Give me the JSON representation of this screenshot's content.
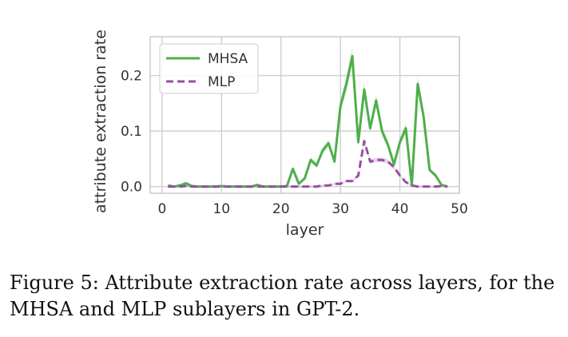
{
  "chart_data": {
    "type": "line",
    "xlabel": "layer",
    "ylabel": "attribute extraction rate",
    "xlim": [
      -2,
      50
    ],
    "ylim": [
      -0.012,
      0.27
    ],
    "xticks": [
      0,
      10,
      20,
      30,
      40,
      50
    ],
    "yticks": [
      0.0,
      0.1,
      0.2
    ],
    "ytick_labels": [
      "0.0",
      "0.1",
      "0.2"
    ],
    "grid": true,
    "legend_position": "top-left",
    "series": [
      {
        "name": "MHSA",
        "color": "#4daf4a",
        "style": "solid",
        "x": [
          1,
          2,
          3,
          4,
          5,
          6,
          7,
          8,
          9,
          10,
          11,
          12,
          13,
          14,
          15,
          16,
          17,
          18,
          19,
          20,
          21,
          22,
          23,
          24,
          25,
          26,
          27,
          28,
          29,
          30,
          31,
          32,
          33,
          34,
          35,
          36,
          37,
          38,
          39,
          40,
          41,
          42,
          43,
          44,
          45,
          46,
          47,
          48
        ],
        "y": [
          0.002,
          0.0,
          0.002,
          0.006,
          0.001,
          0.0,
          0.0,
          0.0,
          0.0,
          0.001,
          0.0,
          0.0,
          0.0,
          0.0,
          0.0,
          0.003,
          0.0,
          0.0,
          0.0,
          0.0,
          0.001,
          0.032,
          0.005,
          0.015,
          0.048,
          0.038,
          0.065,
          0.078,
          0.045,
          0.145,
          0.185,
          0.235,
          0.08,
          0.175,
          0.105,
          0.155,
          0.1,
          0.075,
          0.04,
          0.08,
          0.105,
          0.002,
          0.185,
          0.125,
          0.03,
          0.02,
          0.003,
          0.0
        ]
      },
      {
        "name": "MLP",
        "color": "#984ea3",
        "style": "dashed",
        "x": [
          1,
          2,
          3,
          4,
          5,
          6,
          7,
          8,
          9,
          10,
          11,
          12,
          13,
          14,
          15,
          16,
          17,
          18,
          19,
          20,
          21,
          22,
          23,
          24,
          25,
          26,
          27,
          28,
          29,
          30,
          31,
          32,
          33,
          34,
          35,
          36,
          37,
          38,
          39,
          40,
          41,
          42,
          43,
          44,
          45,
          46,
          47,
          48
        ],
        "y": [
          0.0,
          0.0,
          0.0,
          0.001,
          0.0,
          0.0,
          0.0,
          0.0,
          0.0,
          0.0,
          0.0,
          0.0,
          0.0,
          0.0,
          0.0,
          0.0,
          0.0,
          0.0,
          0.0,
          0.0,
          0.0,
          0.0,
          0.0,
          0.0,
          0.0,
          0.0,
          0.002,
          0.002,
          0.005,
          0.005,
          0.01,
          0.01,
          0.02,
          0.082,
          0.045,
          0.048,
          0.048,
          0.045,
          0.035,
          0.02,
          0.008,
          0.002,
          0.0,
          0.0,
          0.0,
          0.0,
          0.001,
          0.0
        ]
      }
    ]
  },
  "caption": "Figure 5: Attribute extraction rate across layers, for the MHSA and MLP sublayers in GPT-2."
}
